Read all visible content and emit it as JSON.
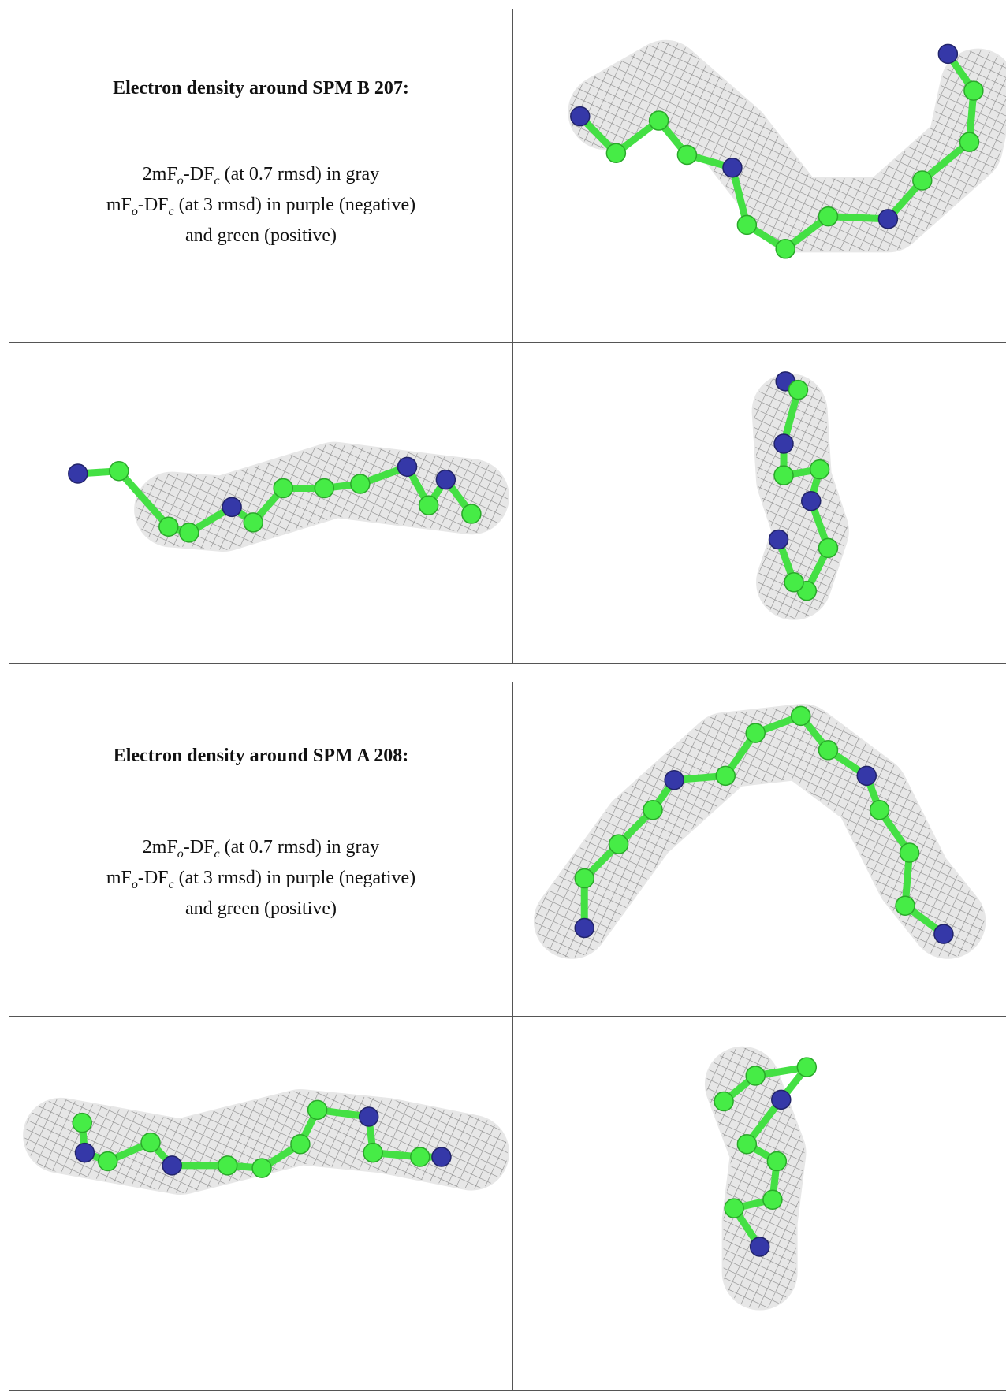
{
  "tables": [
    {
      "title": "Electron density around SPM B 207:",
      "lines": [
        [
          "2mF",
          "o",
          "-DF",
          "c",
          " (at 0.7 rmsd) in gray"
        ],
        [
          "mF",
          "o",
          "-DF",
          "c",
          " (at 3 rmsd) in purple (negative)"
        ],
        [
          "and green (positive)"
        ]
      ]
    },
    {
      "title": "Electron density around SPM A 208:",
      "lines": [
        [
          "2mF",
          "o",
          "-DF",
          "c",
          " (at 0.7 rmsd) in gray"
        ],
        [
          "mF",
          "o",
          "-DF",
          "c",
          " (at 3 rmsd) in purple (negative)"
        ],
        [
          "and green (positive)"
        ]
      ]
    }
  ]
}
